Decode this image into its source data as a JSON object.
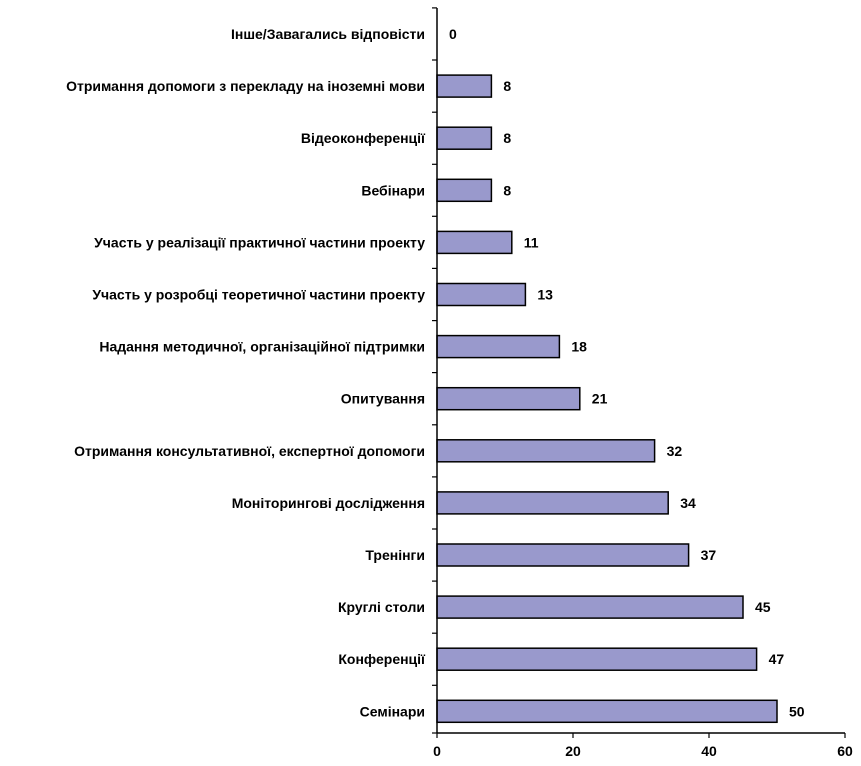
{
  "chart_data": {
    "type": "bar",
    "orientation": "horizontal",
    "categories": [
      "Інше/Завагались відповісти",
      "Отримання допомоги з перекладу на іноземні мови",
      "Відеоконференції",
      "Вебінари",
      "Участь у реалізації практичної частини проекту",
      "Участь у розробці теоретичної частини проекту",
      "Надання методичної, організаційної підтримки",
      "Опитування",
      "Отримання консультативної, експертної допомоги",
      "Моніторингові дослідження",
      "Тренінги",
      "Круглі столи",
      "Конференції",
      "Семінари"
    ],
    "values": [
      0,
      8,
      8,
      8,
      11,
      13,
      18,
      21,
      32,
      34,
      37,
      45,
      47,
      50
    ],
    "value_labels": [
      "0",
      "8",
      "8",
      "8",
      "11",
      "13",
      "18",
      "21",
      "32",
      "34",
      "37",
      "45",
      "47",
      "50"
    ],
    "xlim": [
      0,
      60
    ],
    "x_ticks": [
      0,
      20,
      40,
      60
    ],
    "x_tick_labels": [
      "0",
      "20",
      "40",
      "60"
    ],
    "grid": false,
    "legend": "none",
    "bar_color": "#9999cc",
    "bar_edge_color": "#000000"
  }
}
